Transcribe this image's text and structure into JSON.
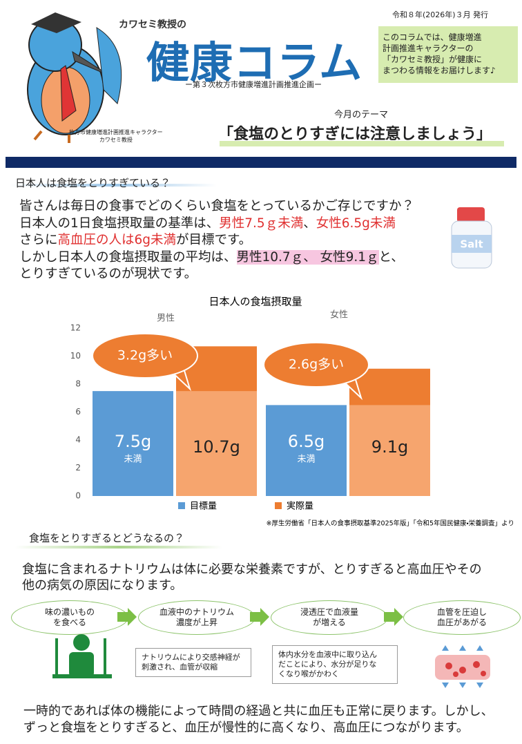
{
  "header": {
    "series_name": "カワセミ教授の",
    "title": "健康コラム",
    "subtitle": "ー第３次枚方市健康増進計画推進企画ー",
    "character_caption": [
      "枚方市健康増進計画推進キャラクター",
      "カワセミ教授"
    ],
    "issue_date": "令和８年(2026年)３月 発行",
    "intro": [
      "このコラムでは、健康増進",
      "計画推進キャラクターの",
      "「カワセミ教授」が健康に",
      "まつわる情報をお届けします♪"
    ]
  },
  "theme": {
    "label": "今月のテーマ",
    "title": "「食塩のとりすぎには注意しましょう」"
  },
  "section1": {
    "heading": "日本人は食塩をとりすぎている？",
    "lines": [
      [
        "皆さんは毎日の食事でどのくらい食塩をとっているかご存じですか？"
      ],
      [
        "日本人の1日食塩摂取量の基準は、",
        "男性7.5ｇ未満",
        "、",
        "女性6.5g未満"
      ],
      [
        "さらに",
        "高血圧の人は6g未満",
        "が目標です。"
      ],
      [
        "しかし日本人の食塩摂取量の平均は、",
        "男性10.7ｇ、 女性9.1ｇ",
        "と、"
      ],
      [
        "とりすぎているのが現状です。"
      ]
    ],
    "icon_label": "Salt"
  },
  "chart_data": {
    "type": "bar",
    "title": "日本人の食塩摂取量",
    "categories": [
      "男性",
      "女性"
    ],
    "series": [
      {
        "name": "目標量",
        "color": "#5b9bd5",
        "values": [
          7.5,
          6.5
        ],
        "value_labels": [
          "7.5g",
          "6.5g"
        ],
        "value_sublabels": [
          "未満",
          "未満"
        ]
      },
      {
        "name": "実際量",
        "color": "#ed7d31",
        "values": [
          10.7,
          9.1
        ],
        "value_labels": [
          "10.7g",
          "9.1g"
        ]
      }
    ],
    "callouts": [
      "3.2g多い",
      "2.6g多い"
    ],
    "ylim": [
      0,
      12
    ],
    "yticks": [
      0,
      2,
      4,
      6,
      8,
      10,
      12
    ],
    "grid": false,
    "legend": "bottom",
    "source": "※厚生労働省「日本人の食事摂取基準2025年版」「令和5年国民健康・栄養調査」より"
  },
  "section2": {
    "heading": "食塩をとりすぎるとどうなるの？",
    "lines": [
      "食塩に含まれるナトリウムは体に必要な栄養素ですが、とりすぎると高血圧やその",
      "他の病気の原因になります。"
    ],
    "flow": [
      [
        "味の濃いもの",
        "を食べる"
      ],
      [
        "血液中のナトリウム",
        "濃度が上昇"
      ],
      [
        "浸透圧で血液量",
        "が増える"
      ],
      [
        "血管を圧迫し",
        "血圧があがる"
      ]
    ],
    "notes": [
      [
        "ナトリウムにより交感神経が",
        "刺激され、血管が収縮"
      ],
      [
        "体内水分を血液中に取り込ん",
        "だことにより、水分が足りな",
        "くなり喉がかわく"
      ]
    ],
    "closing": [
      "一時的であれば体の機能によって時間の経過と共に血圧も正常に戻ります。しかし、",
      "ずっと食塩をとりすぎると、血圧が慢性的に高くなり、高血圧につながります。"
    ]
  }
}
